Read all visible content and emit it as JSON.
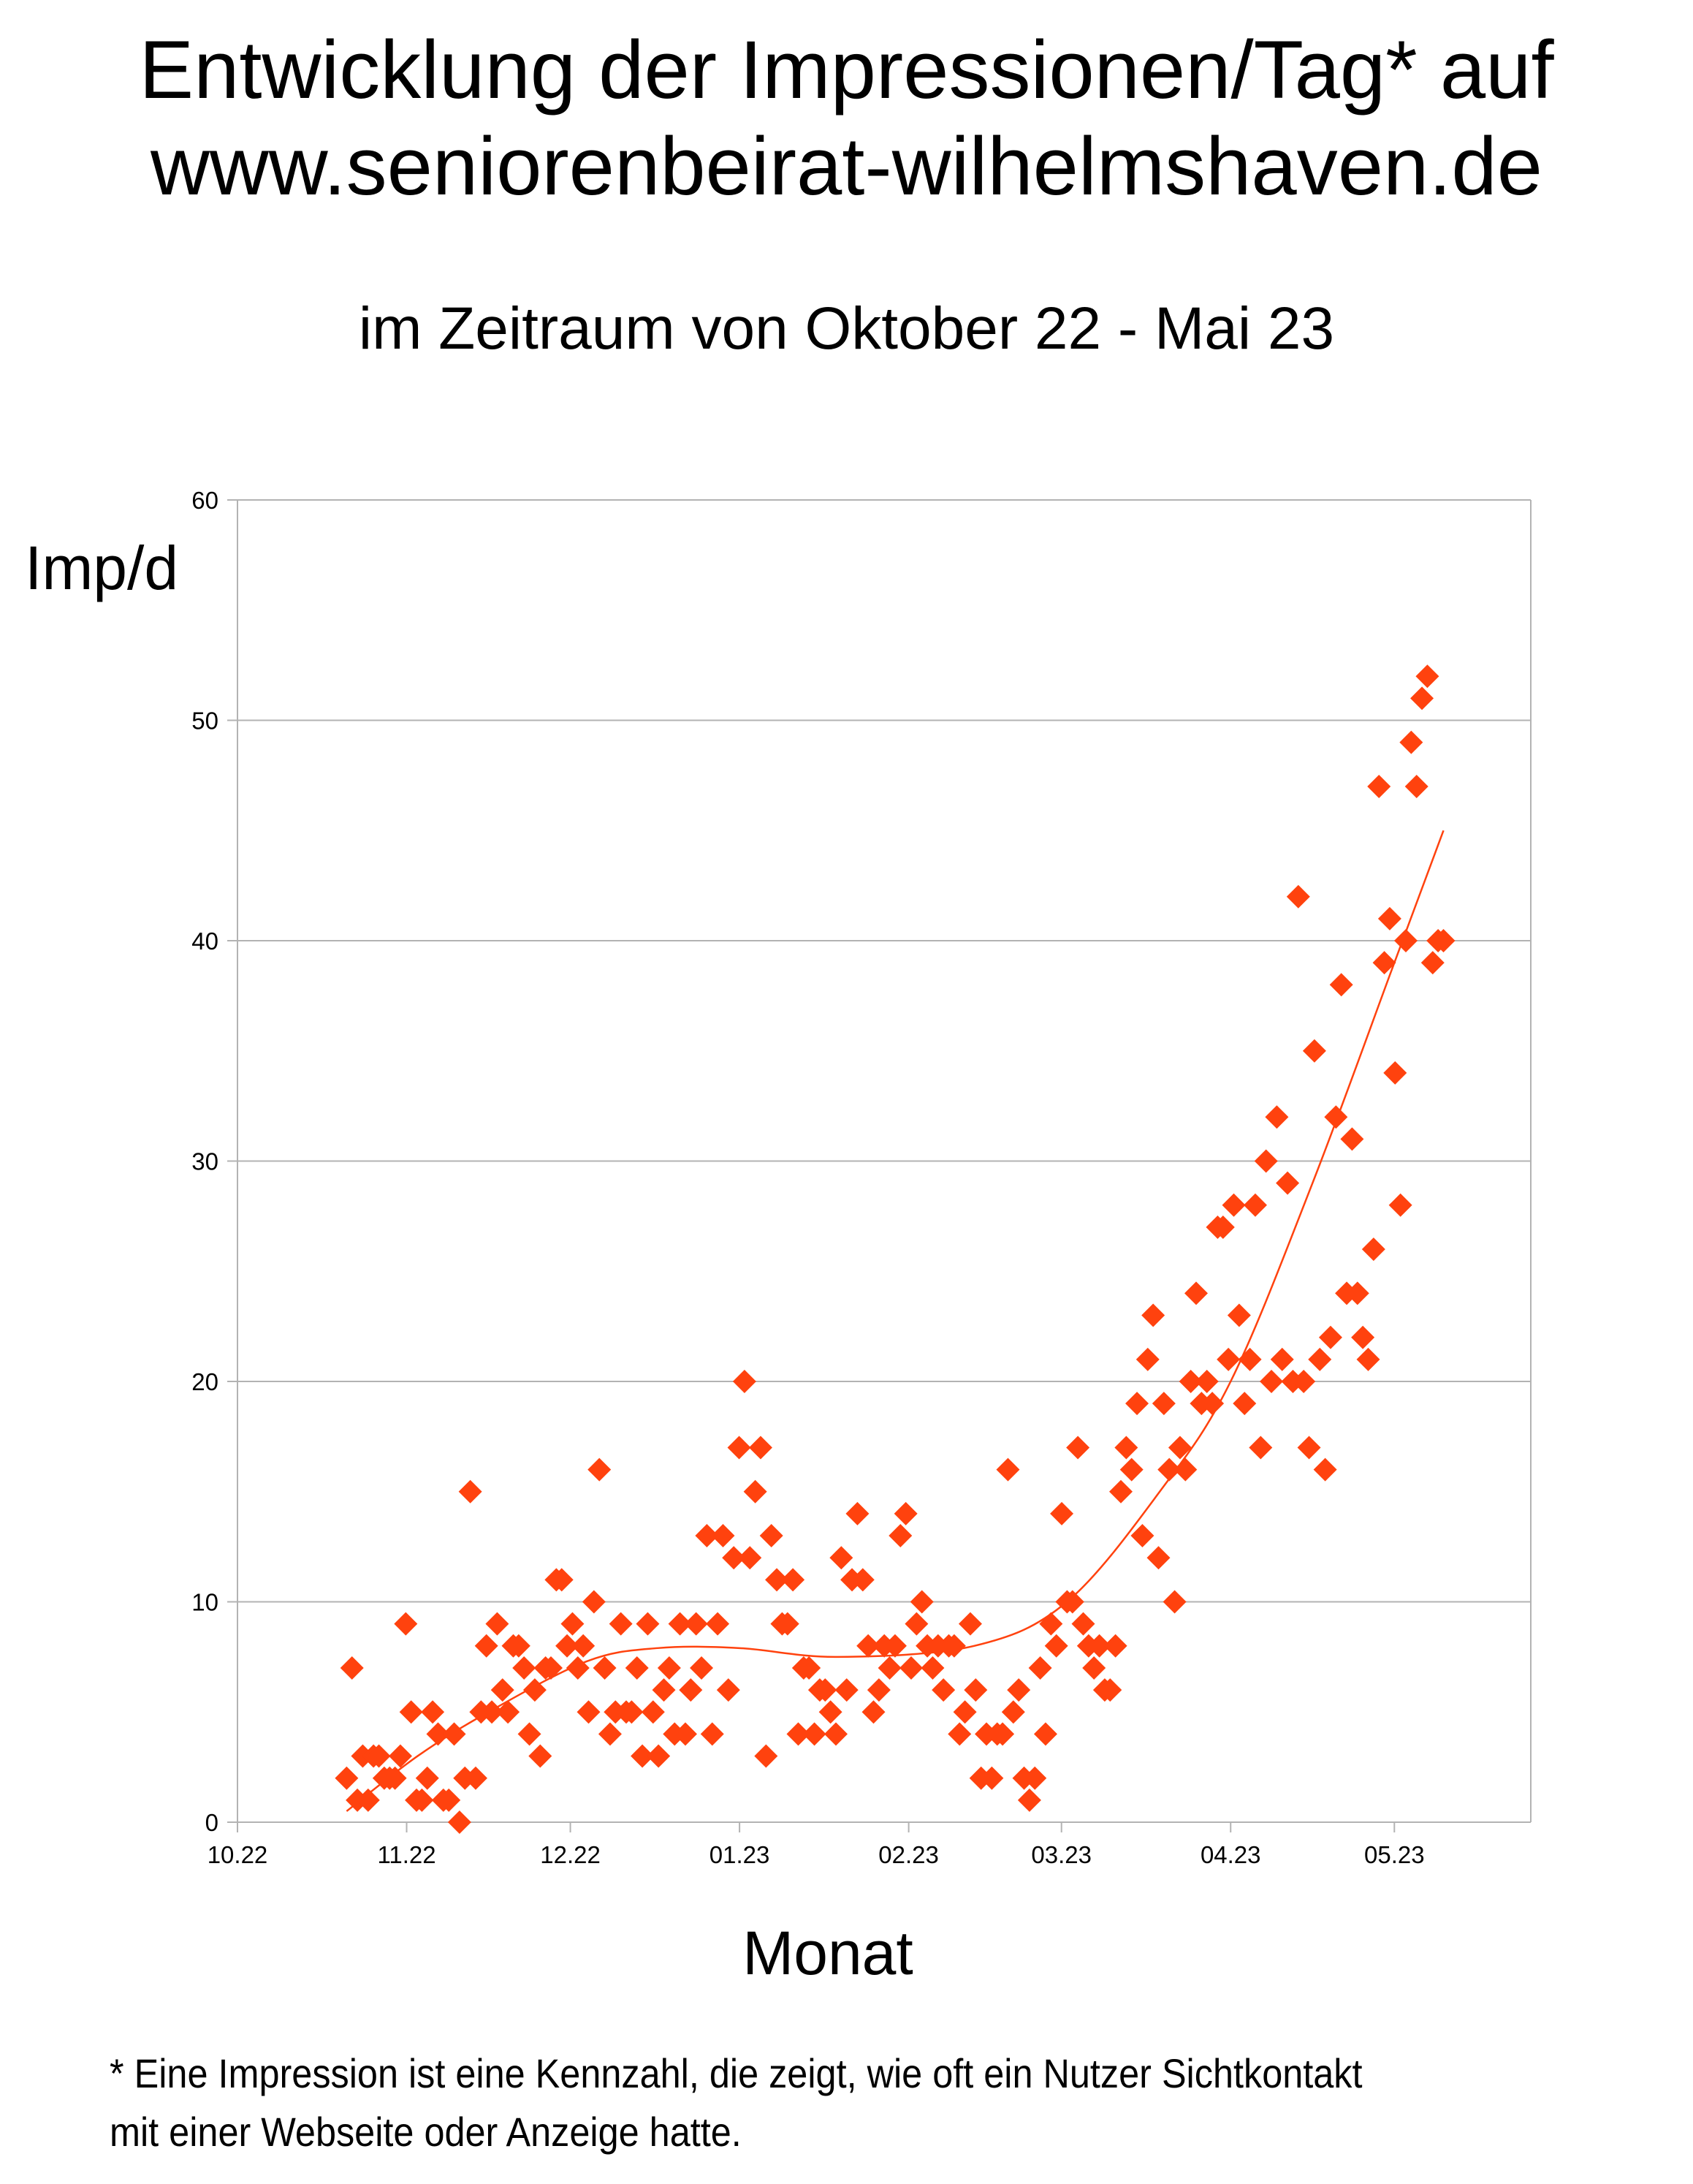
{
  "chart_data": {
    "type": "scatter",
    "title": [
      "Entwicklung der Impressionen/Tag* auf",
      "www.seniorenbeirat-wilhelmshaven.de"
    ],
    "subtitle": "im Zeitraum von Oktober 22 - Mai 23",
    "ylabel": "Imp/d",
    "xlabel": "Monat",
    "footnote": [
      "* Eine Impression ist eine Kennzahl, die zeigt, wie oft ein Nutzer Sichtkontakt",
      "mit einer Webseite oder Anzeige hatte."
    ],
    "ylim": [
      0,
      60
    ],
    "yticks": [
      0,
      10,
      20,
      30,
      40,
      50,
      60
    ],
    "x_unit": "days since 01.10.22",
    "xlim": [
      0,
      237
    ],
    "xticks": [
      {
        "day": 0,
        "label": "10.22"
      },
      {
        "day": 31,
        "label": "11.22"
      },
      {
        "day": 61,
        "label": "12.22"
      },
      {
        "day": 92,
        "label": "01.23"
      },
      {
        "day": 123,
        "label": "02.23"
      },
      {
        "day": 151,
        "label": "03.23"
      },
      {
        "day": 182,
        "label": "04.23"
      },
      {
        "day": 212,
        "label": "05.23"
      }
    ],
    "grid": "horizontal",
    "marker": "diamond",
    "color": "#ff420e",
    "series": [
      {
        "name": "Impressionen/Tag",
        "x_start_day": 20,
        "x_end_day": 221,
        "values": [
          2,
          7,
          1,
          3,
          1,
          3,
          3,
          2,
          2,
          2,
          3,
          9,
          5,
          1,
          1,
          2,
          5,
          4,
          1,
          1,
          4,
          0,
          2,
          15,
          2,
          5,
          8,
          5,
          9,
          6,
          5,
          8,
          8,
          7,
          4,
          6,
          3,
          7,
          7,
          11,
          11,
          8,
          9,
          7,
          8,
          5,
          10,
          16,
          7,
          4,
          5,
          9,
          5,
          5,
          7,
          3,
          9,
          5,
          3,
          6,
          7,
          4,
          9,
          4,
          6,
          9,
          7,
          13,
          4,
          9,
          13,
          6,
          12,
          17,
          20,
          12,
          15,
          17,
          3,
          13,
          11,
          9,
          9,
          11,
          4,
          7,
          7,
          4,
          6,
          6,
          5,
          4,
          12,
          6,
          11,
          14,
          11,
          8,
          5,
          6,
          8,
          7,
          8,
          13,
          14,
          7,
          9,
          10,
          8,
          7,
          8,
          6,
          8,
          8,
          4,
          5,
          9,
          6,
          2,
          4,
          2,
          4,
          4,
          16,
          5,
          6,
          2,
          1,
          2,
          7,
          4,
          9,
          8,
          14,
          10,
          10,
          17,
          9,
          8,
          7,
          8,
          6,
          6,
          8,
          15,
          17,
          16,
          19,
          13,
          21,
          23,
          12,
          19,
          16,
          10,
          17,
          16,
          20,
          24,
          19,
          20,
          19,
          27,
          27,
          21,
          28,
          23,
          19,
          21,
          28,
          17,
          30,
          20,
          32,
          21,
          29,
          20,
          42,
          20,
          17,
          35,
          21,
          16,
          22,
          32,
          38,
          24,
          31,
          24,
          22,
          21,
          26,
          47,
          39,
          41,
          34,
          28,
          40,
          49,
          47,
          51,
          52,
          39,
          40,
          40
        ]
      }
    ],
    "trendline": {
      "type": "polynomial",
      "points": [
        [
          20,
          0.5
        ],
        [
          33,
          3
        ],
        [
          46,
          5
        ],
        [
          64,
          7.3
        ],
        [
          77,
          7.9
        ],
        [
          92,
          7.9
        ],
        [
          110,
          7.5
        ],
        [
          135,
          8
        ],
        [
          152,
          10
        ],
        [
          169,
          15
        ],
        [
          182,
          20
        ],
        [
          197,
          29
        ],
        [
          212,
          39
        ],
        [
          221,
          45
        ]
      ]
    }
  }
}
